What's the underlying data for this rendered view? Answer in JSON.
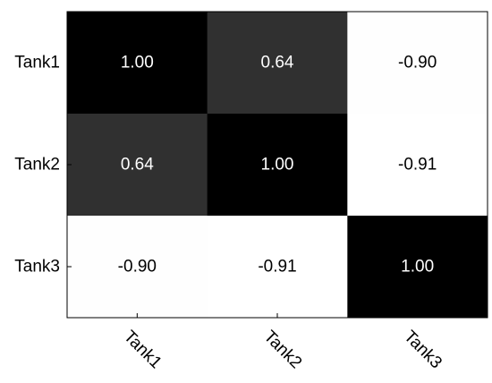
{
  "chart_data": {
    "type": "heatmap",
    "title": "",
    "xlabel": "",
    "ylabel": "",
    "x_categories": [
      "Tank1",
      "Tank2",
      "Tank3"
    ],
    "y_categories": [
      "Tank1",
      "Tank2",
      "Tank3"
    ],
    "values": [
      [
        1.0,
        0.64,
        -0.9
      ],
      [
        0.64,
        1.0,
        -0.91
      ],
      [
        -0.9,
        -0.91,
        1.0
      ]
    ],
    "value_labels": [
      [
        "1.00",
        "0.64",
        "-0.90"
      ],
      [
        "0.64",
        "1.00",
        "-0.91"
      ],
      [
        "-0.90",
        "-0.91",
        "1.00"
      ]
    ],
    "colormap": "gray",
    "color_for_max": "#000000",
    "color_for_min": "#ffffff",
    "colorbar": false,
    "grid": false,
    "x_tick_rotation_deg": 45
  }
}
